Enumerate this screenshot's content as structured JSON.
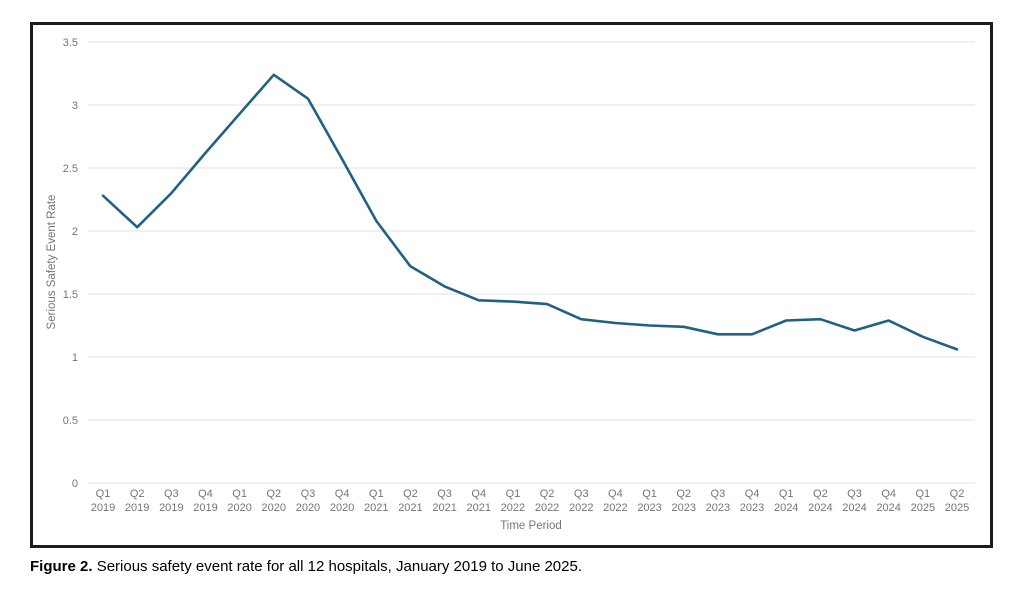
{
  "figure": {
    "caption_label": "Figure 2.",
    "caption_text": "Serious safety event rate for all 12 hospitals, January 2019 to June 2025."
  },
  "chart_data": {
    "type": "line",
    "title": "",
    "xlabel": "Time Period",
    "ylabel": "Serious Safety Event Rate",
    "ylim": [
      0,
      3.5
    ],
    "yticks": [
      "0",
      "0.5",
      "1",
      "1.5",
      "2",
      "2.5",
      "3",
      "3.5"
    ],
    "grid": "horizontal gridlines only",
    "legend_position": "none",
    "line_color": "#216183",
    "gridline_color": "#e2e2e2",
    "tick_text_color": "#757575",
    "categories": [
      "Q1 2019",
      "Q2 2019",
      "Q3 2019",
      "Q4 2019",
      "Q1 2020",
      "Q2 2020",
      "Q3 2020",
      "Q4 2020",
      "Q1 2021",
      "Q2 2021",
      "Q3 2021",
      "Q4 2021",
      "Q1 2022",
      "Q2 2022",
      "Q3 2022",
      "Q4 2022",
      "Q1 2023",
      "Q2 2023",
      "Q3 2023",
      "Q4 2023",
      "Q1 2024",
      "Q2 2024",
      "Q3 2024",
      "Q4 2024",
      "Q1 2025",
      "Q2 2025"
    ],
    "values": [
      2.28,
      2.03,
      2.3,
      2.62,
      2.93,
      3.24,
      3.05,
      2.57,
      2.08,
      1.72,
      1.56,
      1.45,
      1.44,
      1.42,
      1.3,
      1.27,
      1.25,
      1.24,
      1.18,
      1.18,
      1.29,
      1.3,
      1.21,
      1.29,
      1.16,
      1.06
    ]
  }
}
